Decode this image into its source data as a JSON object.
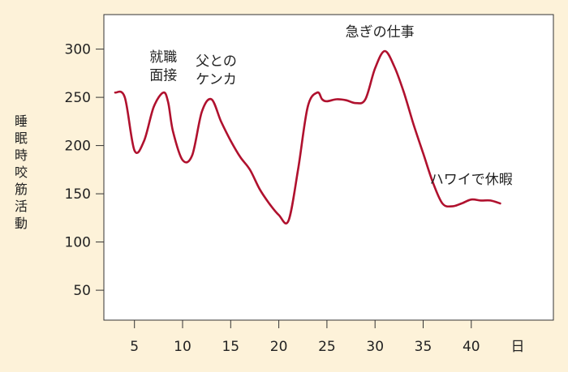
{
  "chart_data": {
    "type": "line",
    "title": "",
    "ylabel": "睡眠時咬筋活動",
    "xlabel": "日",
    "x_ticks": [
      5,
      10,
      15,
      20,
      25,
      30,
      35,
      40
    ],
    "x_tick_labels": [
      "5",
      "10",
      "15",
      "20",
      "25",
      "30",
      "35",
      "40"
    ],
    "x_unit_label": "日",
    "y_ticks": [
      50,
      100,
      150,
      200,
      250,
      300
    ],
    "y_tick_labels": [
      "50",
      "100",
      "150",
      "200",
      "250",
      "300"
    ],
    "xlim": [
      2,
      42
    ],
    "ylim": [
      0,
      320
    ],
    "grid": false,
    "color": "#b0112e",
    "series": [
      {
        "x": [
          3,
          4,
          5,
          6,
          7,
          8,
          8.5,
          9,
          10,
          11,
          12,
          13,
          14,
          15,
          16,
          17,
          18,
          19,
          20,
          21,
          22,
          23,
          24,
          24.5,
          25,
          26,
          27,
          28,
          29,
          30,
          31,
          32,
          33,
          34,
          35,
          36,
          37,
          38,
          39,
          40,
          41,
          42,
          43
        ],
        "y": [
          255,
          250,
          195,
          205,
          240,
          255,
          245,
          215,
          185,
          190,
          235,
          248,
          225,
          205,
          188,
          175,
          155,
          140,
          128,
          122,
          175,
          240,
          255,
          248,
          246,
          248,
          247,
          244,
          248,
          280,
          298,
          282,
          255,
          222,
          192,
          162,
          140,
          137,
          140,
          144,
          143,
          143,
          140
        ]
      }
    ],
    "annotations": [
      {
        "text": "就職",
        "x": 8,
        "y": 287
      },
      {
        "text": "面接",
        "x": 8,
        "y": 268
      },
      {
        "text": "父との",
        "x": 13.5,
        "y": 283
      },
      {
        "text": "ケンカ",
        "x": 13.5,
        "y": 264
      },
      {
        "text": "急ぎの仕事",
        "x": 30.5,
        "y": 313
      },
      {
        "text": "ハワイで休暇",
        "x": 40,
        "y": 160
      }
    ]
  }
}
